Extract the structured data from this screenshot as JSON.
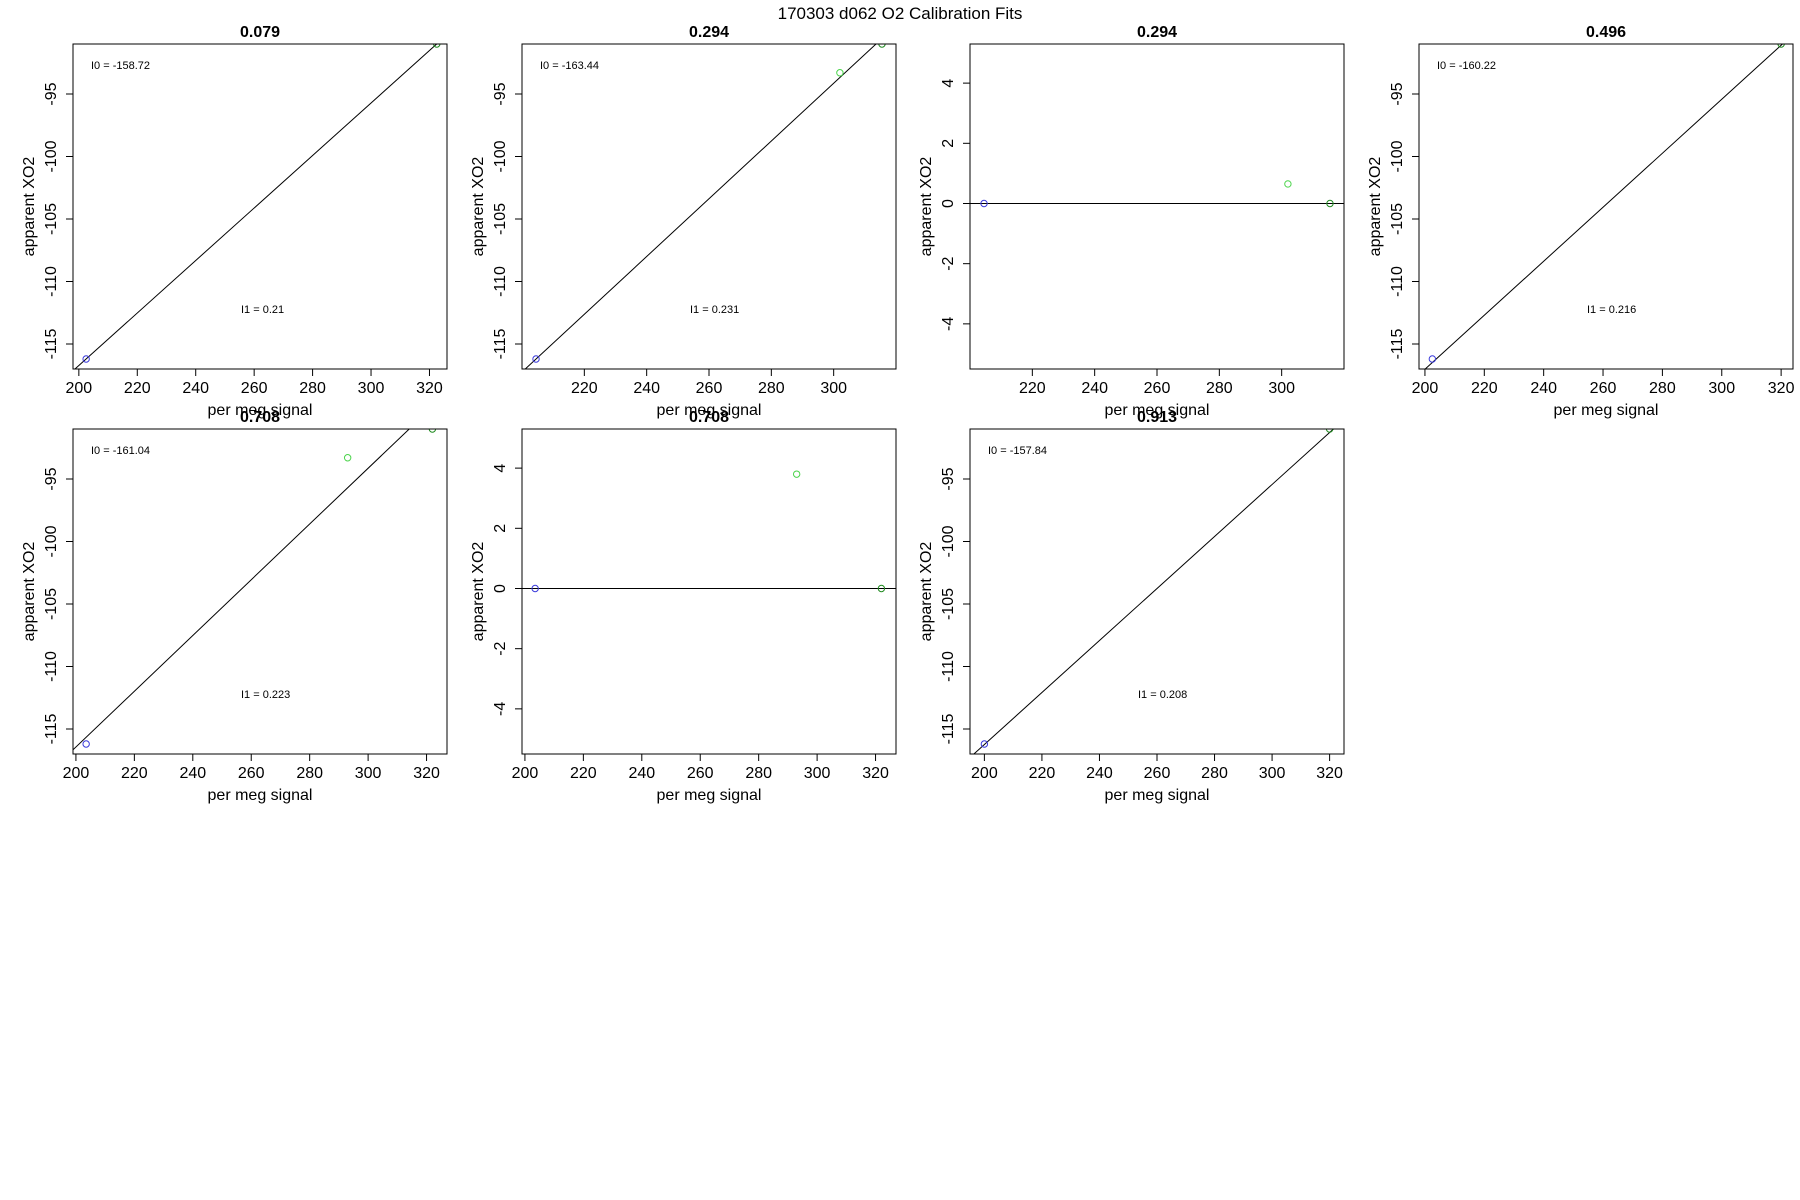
{
  "figure": {
    "title": "170303   d062   O2 Calibration Fits"
  },
  "colors": {
    "blue": "#3a3adb",
    "green_light": "#4cd44c",
    "green_dark": "#1f8a1f",
    "line": "#000000"
  },
  "chart_data": [
    {
      "type": "scatter",
      "title": "0.079",
      "xlabel": "per meg signal",
      "ylabel": "apparent XO2",
      "xlim": [
        198,
        326
      ],
      "ylim": [
        -117,
        -91
      ],
      "xticks": [
        200,
        220,
        240,
        260,
        280,
        300,
        320
      ],
      "yticks": [
        -115,
        -110,
        -105,
        -100,
        -95
      ],
      "annotation_i0": "I0 =  -158.72",
      "annotation_i1": "I1 =  0.21",
      "points": [
        {
          "x": 202.5,
          "y": -116.2,
          "color": "blue"
        },
        {
          "x": 322.5,
          "y": -91.0,
          "color": "green_dark"
        }
      ],
      "line": {
        "slope": 0.21,
        "intercept": -158.72
      }
    },
    {
      "type": "scatter",
      "title": "0.294",
      "xlabel": "per meg signal",
      "ylabel": "apparent XO2",
      "xlim": [
        200,
        320
      ],
      "ylim": [
        -117,
        -91
      ],
      "xticks": [
        220,
        240,
        260,
        280,
        300
      ],
      "yticks": [
        -115,
        -110,
        -105,
        -100,
        -95
      ],
      "annotation_i0": "I0 =  -163.44",
      "annotation_i1": "I1 =  0.231",
      "points": [
        {
          "x": 204.5,
          "y": -116.2,
          "color": "blue"
        },
        {
          "x": 302.0,
          "y": -93.3,
          "color": "green_light"
        },
        {
          "x": 315.5,
          "y": -91.0,
          "color": "green_dark"
        }
      ],
      "line": {
        "slope": 0.231,
        "intercept": -163.44
      }
    },
    {
      "type": "scatter",
      "title": "0.294",
      "xlabel": "per meg signal",
      "ylabel": "apparent XO2",
      "xlim": [
        200,
        320
      ],
      "ylim": [
        -5.5,
        5.3
      ],
      "xticks": [
        220,
        240,
        260,
        280,
        300
      ],
      "yticks": [
        -4,
        -2,
        0,
        2,
        4
      ],
      "annotation_i0": "",
      "annotation_i1": "",
      "points": [
        {
          "x": 204.5,
          "y": 0.0,
          "color": "blue"
        },
        {
          "x": 302.0,
          "y": 0.65,
          "color": "green_light"
        },
        {
          "x": 315.5,
          "y": 0.0,
          "color": "green_dark"
        }
      ],
      "line": {
        "slope": 0,
        "intercept": 0
      }
    },
    {
      "type": "scatter",
      "title": "0.496",
      "xlabel": "per meg signal",
      "ylabel": "apparent XO2",
      "xlim": [
        198,
        324
      ],
      "ylim": [
        -117,
        -91
      ],
      "xticks": [
        200,
        220,
        240,
        260,
        280,
        300,
        320
      ],
      "yticks": [
        -115,
        -110,
        -105,
        -100,
        -95
      ],
      "annotation_i0": "I0 =  -160.22",
      "annotation_i1": "I1 =  0.216",
      "points": [
        {
          "x": 202.5,
          "y": -116.2,
          "color": "blue"
        },
        {
          "x": 320.0,
          "y": -91.0,
          "color": "green_dark"
        }
      ],
      "line": {
        "slope": 0.216,
        "intercept": -160.22
      }
    },
    {
      "type": "scatter",
      "title": "0.708",
      "xlabel": "per meg signal",
      "ylabel": "apparent XO2",
      "xlim": [
        199,
        327
      ],
      "ylim": [
        -117,
        -91
      ],
      "xticks": [
        200,
        220,
        240,
        260,
        280,
        300,
        320
      ],
      "yticks": [
        -115,
        -110,
        -105,
        -100,
        -95
      ],
      "annotation_i0": "I0 =  -161.04",
      "annotation_i1": "I1 =  0.223",
      "points": [
        {
          "x": 203.5,
          "y": -116.2,
          "color": "blue"
        },
        {
          "x": 293.0,
          "y": -93.3,
          "color": "green_light"
        },
        {
          "x": 322.0,
          "y": -91.0,
          "color": "green_dark"
        }
      ],
      "line": {
        "slope": 0.223,
        "intercept": -161.04
      }
    },
    {
      "type": "scatter",
      "title": "0.708",
      "xlabel": "per meg signal",
      "ylabel": "apparent XO2",
      "xlim": [
        199,
        327
      ],
      "ylim": [
        -5.5,
        5.3
      ],
      "xticks": [
        200,
        220,
        240,
        260,
        280,
        300,
        320
      ],
      "yticks": [
        -4,
        -2,
        0,
        2,
        4
      ],
      "annotation_i0": "",
      "annotation_i1": "",
      "points": [
        {
          "x": 203.5,
          "y": 0.0,
          "color": "blue"
        },
        {
          "x": 293.0,
          "y": 3.8,
          "color": "green_light"
        },
        {
          "x": 322.0,
          "y": 0.0,
          "color": "green_dark"
        }
      ],
      "line": {
        "slope": 0,
        "intercept": 0
      }
    },
    {
      "type": "scatter",
      "title": "0.913",
      "xlabel": "per meg signal",
      "ylabel": "apparent XO2",
      "xlim": [
        195,
        325
      ],
      "ylim": [
        -117,
        -91
      ],
      "xticks": [
        200,
        220,
        240,
        260,
        280,
        300,
        320
      ],
      "yticks": [
        -115,
        -110,
        -105,
        -100,
        -95
      ],
      "annotation_i0": "I0 =  -157.84",
      "annotation_i1": "I1 =  0.208",
      "points": [
        {
          "x": 200.0,
          "y": -116.2,
          "color": "blue"
        },
        {
          "x": 320.0,
          "y": -91.0,
          "color": "green_dark"
        }
      ],
      "line": {
        "slope": 0.208,
        "intercept": -157.84
      }
    }
  ]
}
